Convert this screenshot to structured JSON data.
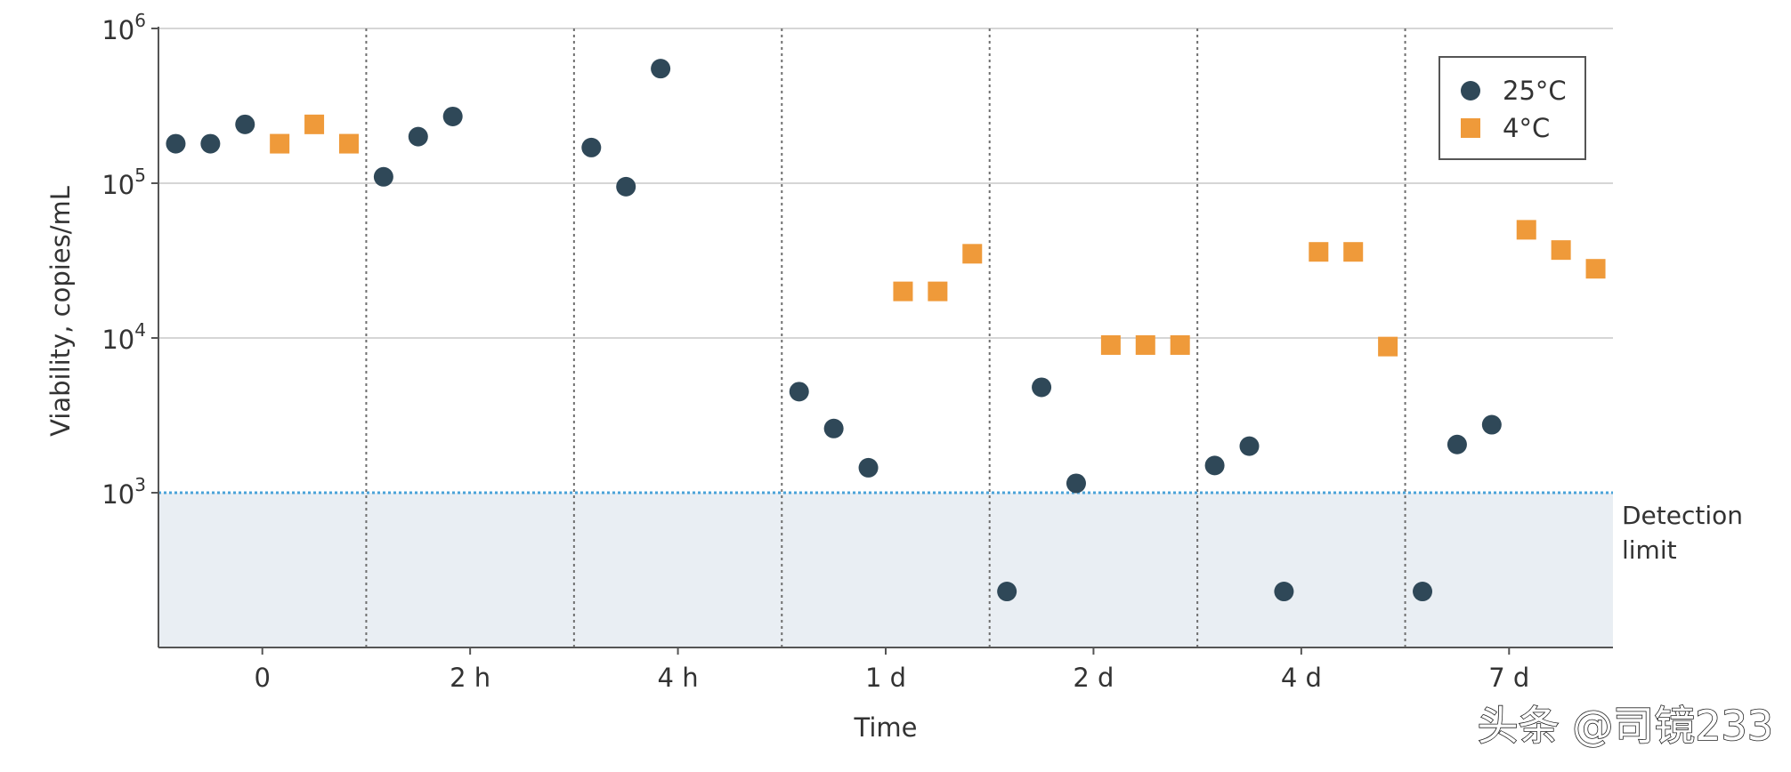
{
  "chart_data": {
    "type": "scatter",
    "xlabel": "Time",
    "ylabel": "Viability, copies/mL",
    "y_scale": "log",
    "ylim_exponents": [
      2,
      6
    ],
    "y_ticks": [
      {
        "base": "10",
        "exp": "3",
        "value": 1000
      },
      {
        "base": "10",
        "exp": "4",
        "value": 10000
      },
      {
        "base": "10",
        "exp": "5",
        "value": 100000
      },
      {
        "base": "10",
        "exp": "6",
        "value": 1000000
      }
    ],
    "categories": [
      "0",
      "2 h",
      "4 h",
      "1 d",
      "2 d",
      "4 d",
      "7 d"
    ],
    "grid": true,
    "legend_position": "top-right",
    "detection_limit": {
      "value": 1000,
      "label_line1": "Detection",
      "label_line2": "limit"
    },
    "series": [
      {
        "name": "25°C",
        "marker": "circle",
        "color": "#2f4858",
        "groups": [
          [
            180000,
            180000,
            240000
          ],
          [
            110000,
            200000,
            270000
          ],
          [
            170000,
            95000,
            550000
          ],
          [
            4500,
            2600,
            1450
          ],
          [
            230,
            4800,
            1150
          ],
          [
            1500,
            2000,
            230
          ],
          [
            230,
            2050,
            2750
          ]
        ]
      },
      {
        "name": "4°C",
        "marker": "square",
        "color": "#ef9a3a",
        "groups": [
          [
            180000,
            240000,
            180000
          ],
          [],
          [],
          [
            20000,
            20000,
            35000
          ],
          [
            9000,
            9000,
            9000
          ],
          [
            36000,
            36000,
            8800
          ],
          [
            50000,
            37000,
            28000
          ]
        ]
      }
    ]
  },
  "watermark": "头条 @司镜233",
  "colors": {
    "grid": "#d6d6d6",
    "divider": "#6f6f6f",
    "axis": "#555555",
    "detection_line": "#4aa3d8",
    "below_detection_fill": "#e9eef3"
  }
}
